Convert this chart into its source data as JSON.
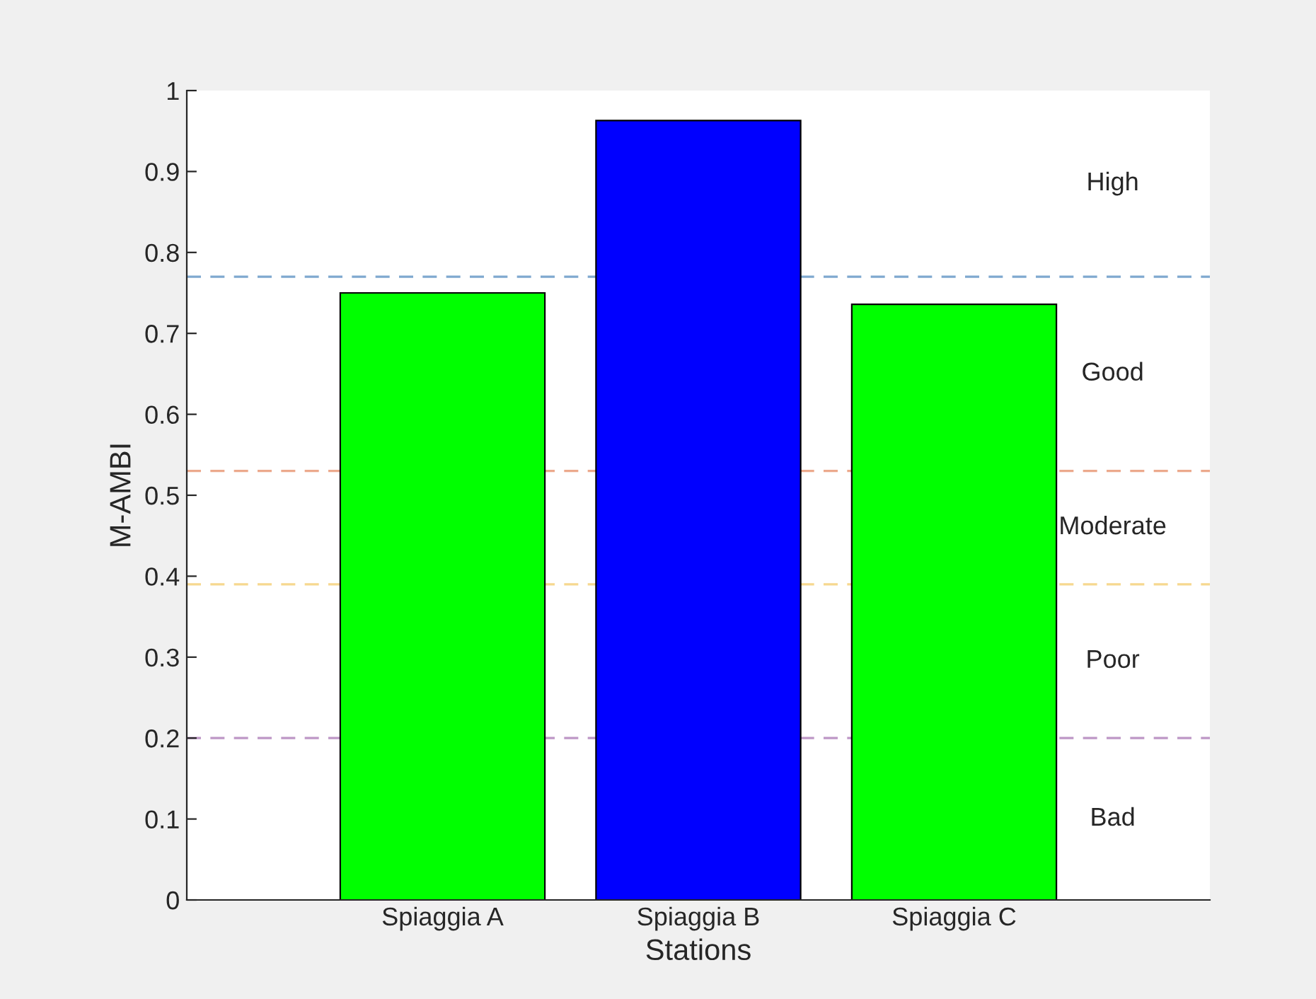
{
  "chart_data": {
    "type": "bar",
    "xlabel": "Stations",
    "ylabel": "M-AMBI",
    "categories": [
      "Spiaggia A",
      "Spiaggia B",
      "Spiaggia C"
    ],
    "values": [
      0.75,
      0.963,
      0.736
    ],
    "colors": [
      "#00ff00",
      "#0000ff",
      "#00ff00"
    ],
    "ylim": [
      0,
      1
    ],
    "yticks": [
      0,
      0.1,
      0.2,
      0.3,
      0.4,
      0.5,
      0.6,
      0.7,
      0.8,
      0.9,
      1
    ],
    "ref_lines": [
      {
        "axis": "y",
        "value": 0.77,
        "color": "#7fa8cf",
        "line_style": "dashed"
      },
      {
        "axis": "y",
        "value": 0.53,
        "color": "#eca98c",
        "line_style": "dashed"
      },
      {
        "axis": "y",
        "value": 0.39,
        "color": "#f6d88f",
        "line_style": "dashed"
      },
      {
        "axis": "y",
        "value": 0.2,
        "color": "#be97c6",
        "line_style": "dashed"
      }
    ],
    "annotations": [
      "High",
      "Good",
      "Moderate",
      "Poor",
      "Bad"
    ],
    "grid": false,
    "legend": false
  }
}
